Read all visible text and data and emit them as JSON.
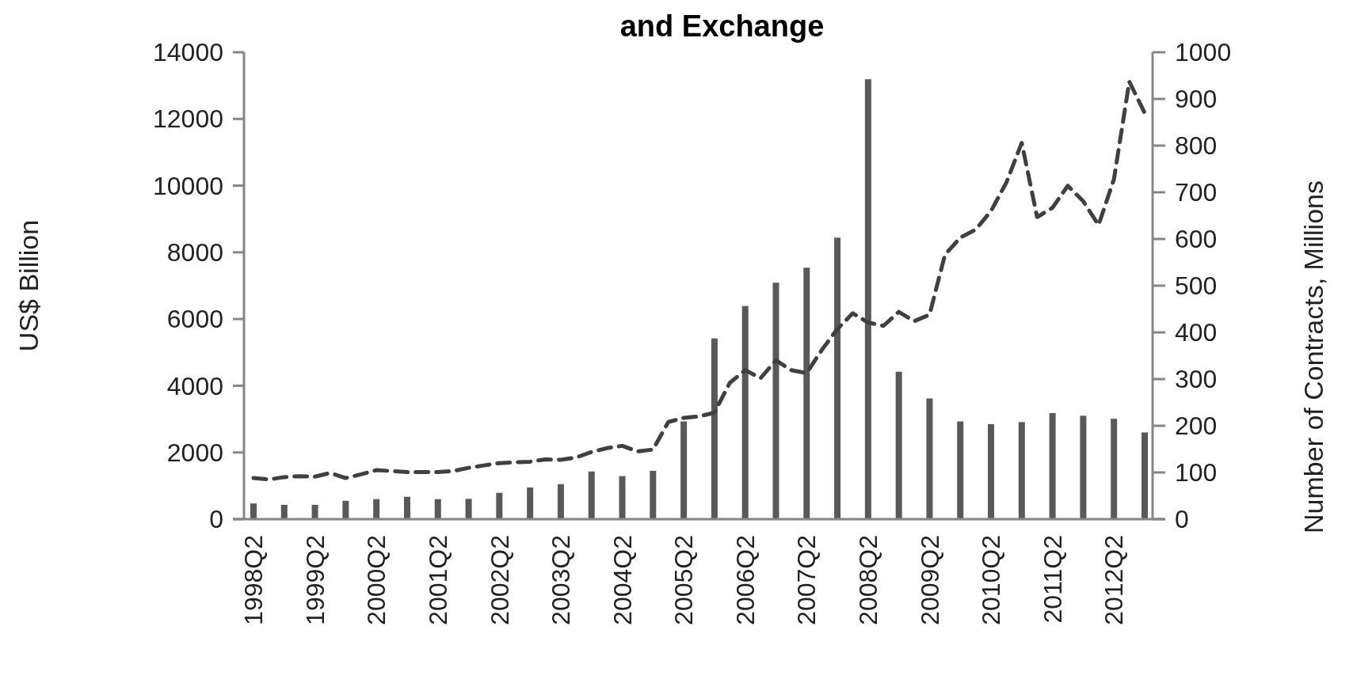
{
  "chart_data": {
    "type": "bar",
    "title": "and Exchange",
    "ylabel": "US$ Billion",
    "y2label": "Number of Contracts, Millions",
    "categories": [
      "1998Q2",
      null,
      null,
      null,
      "1999Q2",
      null,
      null,
      null,
      "2000Q2",
      null,
      null,
      null,
      "2001Q2",
      null,
      null,
      null,
      "2002Q2",
      null,
      null,
      null,
      "2003Q2",
      null,
      null,
      null,
      "2004Q2",
      null,
      null,
      null,
      "2005Q2",
      null,
      null,
      null,
      "2006Q2",
      null,
      null,
      null,
      "2007Q2",
      null,
      null,
      null,
      "2008Q2",
      null,
      null,
      null,
      "2009Q2",
      null,
      null,
      null,
      "2010Q2",
      null,
      null,
      null,
      "2011Q2",
      null,
      null,
      null,
      "2012Q2",
      null,
      null
    ],
    "series": [
      {
        "color": "#595959",
        "values": [
          470,
          null,
          430,
          null,
          430,
          null,
          550,
          null,
          600,
          null,
          670,
          null,
          600,
          null,
          610,
          null,
          790,
          null,
          950,
          null,
          1050,
          null,
          1430,
          null,
          1290,
          null,
          1450,
          null,
          2930,
          null,
          5420,
          null,
          6390,
          null,
          7090,
          null,
          7540,
          null,
          8440,
          null,
          13190,
          null,
          4420,
          null,
          3620,
          null,
          2930,
          null,
          2850,
          null,
          2910,
          null,
          3180,
          null,
          3100,
          null,
          3010,
          null,
          2600
        ]
      },
      {
        "type": "line",
        "axis": "y2",
        "color": "#404040",
        "line_style": "dashed",
        "values": [
          88,
          85,
          90,
          92,
          91,
          99,
          88,
          96,
          105,
          103,
          101,
          101,
          101,
          103,
          110,
          115,
          120,
          122,
          123,
          128,
          127,
          132,
          144,
          152,
          157,
          145,
          149,
          208,
          217,
          220,
          228,
          292,
          319,
          302,
          340,
          319,
          313,
          363,
          407,
          441,
          421,
          414,
          444,
          424,
          438,
          566,
          603,
          620,
          660,
          721,
          806,
          647,
          667,
          714,
          681,
          630,
          728,
          937,
          870
        ]
      }
    ],
    "ylim": [
      0,
      14000
    ],
    "yticks": [
      0,
      2000,
      4000,
      6000,
      8000,
      10000,
      12000,
      14000
    ],
    "y2lim": [
      0,
      1000
    ],
    "y2ticks": [
      0,
      100,
      200,
      300,
      400,
      500,
      600,
      700,
      800,
      900,
      1000
    ]
  }
}
